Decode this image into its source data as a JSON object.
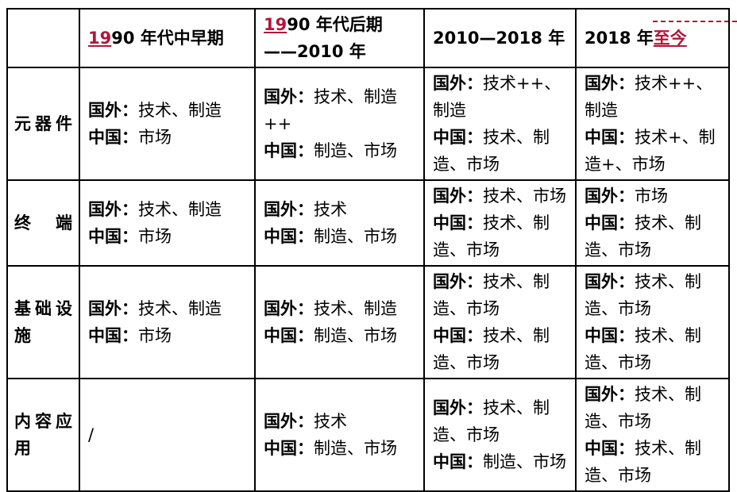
{
  "header": {
    "corner": "",
    "columns": [
      {
        "red": "19",
        "rest": "90 年代中早期"
      },
      {
        "red": "19",
        "rest": "90 年代后期——2010 年"
      },
      {
        "red": "",
        "rest": "2010—2018 年"
      },
      {
        "red": "",
        "pre": "2018 年",
        "red_after": "至今"
      }
    ]
  },
  "rows": [
    {
      "label": "元器件",
      "cells": [
        [
          {
            "l": "国外：",
            "t": "技术、制造"
          },
          {
            "l": "中国：",
            "t": "市场"
          }
        ],
        [
          {
            "l": "国外：",
            "t": "技术、制造++"
          },
          {
            "l": "中国：",
            "t": "制造、市场"
          }
        ],
        [
          {
            "l": "国外：",
            "t": "技术++、制造"
          },
          {
            "l": "中国：",
            "t": "技术、制造、市场"
          }
        ],
        [
          {
            "l": "国外：",
            "t": "技术++、制造"
          },
          {
            "l": "中国：",
            "t": "技术+、制造+、市场"
          }
        ]
      ]
    },
    {
      "label": "终端",
      "cells": [
        [
          {
            "l": "国外：",
            "t": "技术、制造"
          },
          {
            "l": "中国：",
            "t": "市场"
          }
        ],
        [
          {
            "l": "国外：",
            "t": "技术"
          },
          {
            "l": "中国：",
            "t": "制造、市场"
          }
        ],
        [
          {
            "l": "国外：",
            "t": "技术、市场"
          },
          {
            "l": "中国：",
            "t": "技术、制造、市场"
          }
        ],
        [
          {
            "l": "国外：",
            "t": "市场"
          },
          {
            "l": "中国：",
            "t": "技术、制造、市场"
          }
        ]
      ]
    },
    {
      "label": "基础设施",
      "cells": [
        [
          {
            "l": "国外：",
            "t": "技术、制造"
          },
          {
            "l": "中国：",
            "t": "市场"
          }
        ],
        [
          {
            "l": "国外：",
            "t": "技术、制造"
          },
          {
            "l": "中国：",
            "t": "制造、市场"
          }
        ],
        [
          {
            "l": "国外：",
            "t": "技术、制造、市场"
          },
          {
            "l": "中国：",
            "t": "技术、制造、市场"
          }
        ],
        [
          {
            "l": "国外：",
            "t": "技术、制造、市场"
          },
          {
            "l": "中国：",
            "t": "技术、制造、市场"
          }
        ]
      ]
    },
    {
      "label": "内容应用",
      "cells": [
        [
          {
            "l": "",
            "t": "/"
          }
        ],
        [
          {
            "l": "国外：",
            "t": "技术"
          },
          {
            "l": "中国：",
            "t": "制造、市场"
          }
        ],
        [
          {
            "l": "国外：",
            "t": "技术、制造、市场"
          },
          {
            "l": "中国：",
            "t": "制造、市场"
          }
        ],
        [
          {
            "l": "国外：",
            "t": "技术、制造、市场"
          },
          {
            "l": "中国：",
            "t": "技术、制造、市场"
          }
        ]
      ]
    }
  ],
  "colors": {
    "accent_red": "#b0173a"
  }
}
